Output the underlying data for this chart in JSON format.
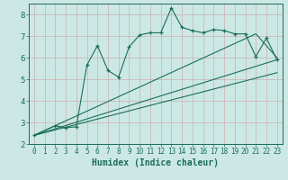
{
  "xlabel": "Humidex (Indice chaleur)",
  "bg_color": "#cce8e4",
  "grid_color": "#aad4cc",
  "line_color": "#1a6e5a",
  "xlim": [
    -0.5,
    23.5
  ],
  "ylim": [
    2.0,
    8.5
  ],
  "xticks": [
    0,
    1,
    2,
    3,
    4,
    5,
    6,
    7,
    8,
    9,
    10,
    11,
    12,
    13,
    14,
    15,
    16,
    17,
    18,
    19,
    20,
    21,
    22,
    23
  ],
  "yticks": [
    2,
    3,
    4,
    5,
    6,
    7,
    8
  ],
  "zigzag_x": [
    0,
    2,
    3,
    4,
    5,
    6,
    7,
    8,
    9,
    10,
    11,
    12,
    13,
    14,
    15,
    16,
    17,
    18,
    19,
    20,
    21,
    22,
    23
  ],
  "zigzag_y": [
    2.4,
    2.85,
    2.75,
    2.8,
    5.65,
    6.55,
    5.4,
    5.1,
    6.5,
    7.05,
    7.15,
    7.15,
    8.3,
    7.4,
    7.25,
    7.15,
    7.3,
    7.25,
    7.1,
    7.1,
    6.05,
    6.9,
    5.9
  ],
  "line1_x": [
    0,
    21,
    23
  ],
  "line1_y": [
    2.4,
    7.1,
    6.0
  ],
  "line2_x": [
    0,
    23
  ],
  "line2_y": [
    2.4,
    5.9
  ],
  "line3_x": [
    0,
    23
  ],
  "line3_y": [
    2.4,
    5.3
  ]
}
